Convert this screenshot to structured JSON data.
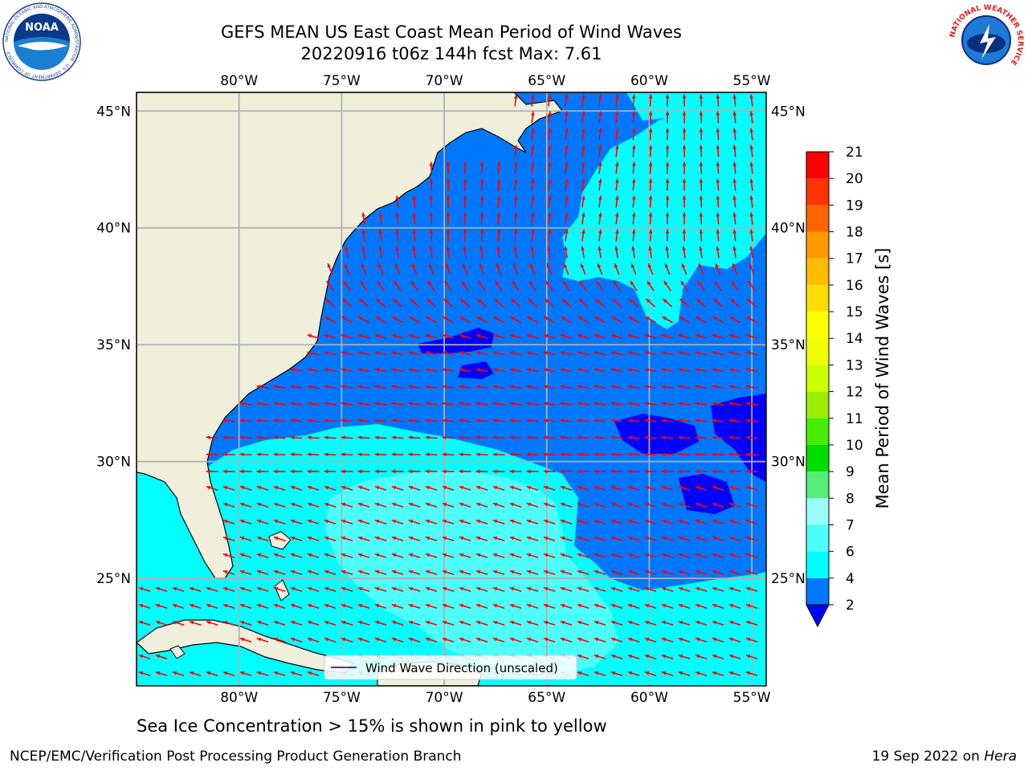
{
  "header": {
    "title_line1": "GEFS MEAN US East Coast Mean Period of Wind Waves",
    "title_line2": "20220916 t06z 144h fcst   Max: 7.61"
  },
  "logos": {
    "noaa_text": "NOAA",
    "noaa_ring_text": "NATIONAL OCEANIC AND ATMOSPHERIC ADMINISTRATION · U.S. DEPARTMENT OF COMMERCE",
    "nws_ring_text": "NATIONAL WEATHER SERVICE"
  },
  "map": {
    "lon_labels": [
      "80°W",
      "75°W",
      "70°W",
      "65°W",
      "60°W",
      "55°W"
    ],
    "lat_labels": [
      "45°N",
      "40°N",
      "35°N",
      "30°N",
      "25°N"
    ],
    "lon_values": [
      -80,
      -75,
      -70,
      -65,
      -60,
      -55
    ],
    "lat_values": [
      45,
      40,
      35,
      30,
      25
    ],
    "extent": {
      "lon": [
        -85,
        -54.3
      ],
      "lat": [
        20.4,
        45.8
      ]
    },
    "land_color": "#efefdc",
    "grid_color": "#b0b0b0",
    "arrow_color": "#ff0000",
    "legend_label": "Wind Wave Direction (unscaled)"
  },
  "colorbar": {
    "title": "Mean Period of Wind Waves [s]",
    "tick_labels": [
      "2",
      "4",
      "6",
      "7",
      "8",
      "9",
      "10",
      "11",
      "12",
      "13",
      "14",
      "15",
      "16",
      "17",
      "18",
      "19",
      "20",
      "21"
    ],
    "colors": [
      "#0077ff",
      "#00ffff",
      "#4dfffa",
      "#99fffa",
      "#55ee77",
      "#00dd00",
      "#44ee00",
      "#99ee00",
      "#ccff00",
      "#eeff00",
      "#ffff00",
      "#ffdd00",
      "#ffbb00",
      "#ff9900",
      "#ff6600",
      "#ff3300",
      "#ff0000"
    ],
    "under_color": "#0000ff"
  },
  "footer": {
    "note": "Sea Ice Concentration > 15% is shown in pink to yellow",
    "left": "NCEP/EMC/Verification Post Processing Product Generation Branch",
    "right_prefix": "19 Sep 2022 on ",
    "right_host": "Hera"
  }
}
